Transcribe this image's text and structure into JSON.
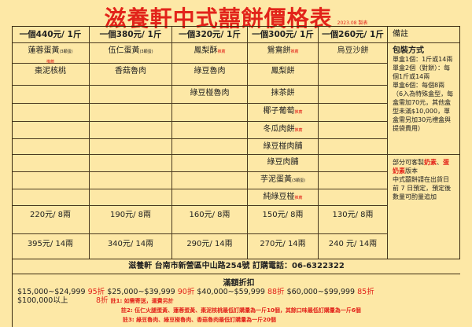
{
  "title": "滋養軒中式囍餅價格表",
  "date_note": "2023.08 製表",
  "headers": [
    "一個440元/ 1斤",
    "一個380元/ 1斤",
    "一個320元/ 1斤",
    "一個300元/ 1斤",
    "一個260元/ 1斤",
    "備註"
  ],
  "recommend_label": "推薦",
  "columns": [
    {
      "items": [
        {
          "name": "蓮蓉蛋黃",
          "sub": "(3顆蛋)",
          "rec": true
        },
        {
          "name": "棗泥核桃"
        }
      ],
      "price_8": "220元/ 8兩",
      "price_14": "395元/ 14兩"
    },
    {
      "items": [
        {
          "name": "伍仁蛋黃",
          "sub": "(3顆蛋)"
        },
        {
          "name": "香菇魯肉"
        }
      ],
      "price_8": "190元/ 8兩",
      "price_14": "340元/ 14兩"
    },
    {
      "items": [
        {
          "name": "鳳梨酥",
          "rec": true
        },
        {
          "name": "綠豆魯肉"
        },
        {
          "name": "綠豆椪魯肉"
        }
      ],
      "price_8": "160元/ 8兩",
      "price_14": "290元/ 14兩"
    },
    {
      "items": [
        {
          "name": "鴛鴦餅",
          "rec": true
        },
        {
          "name": "鳳梨餅"
        },
        {
          "name": "抹茶餅"
        },
        {
          "name": "椰子葡萄",
          "rec": true
        },
        {
          "name": "冬瓜肉餅",
          "rec": true
        },
        {
          "name": "綠豆椪肉脯"
        },
        {
          "name": "綠豆肉脯"
        },
        {
          "name": "芋泥蛋黃",
          "sub": "(3顆蛋)"
        },
        {
          "name": "純綠豆椪",
          "rec": true
        }
      ],
      "price_8": "150元/ 8兩",
      "price_14": "270元/ 14兩"
    },
    {
      "items": [
        {
          "name": "烏豆沙餅"
        }
      ],
      "price_8": "130元/ 8兩",
      "price_14": "240 元/ 14兩"
    }
  ],
  "notes": {
    "packaging_title": "包裝方式",
    "packaging_lines": [
      "單盒1個：1斤或14兩",
      "單盒2個（對餅）：每個1斤或14兩",
      "單盒6個：每個8兩（6入為特殊盒型，每盒需加70元，其他盒型未滿$10,000，單盒需另加30元禮盒與提袋費用）"
    ],
    "custom_prefix": "部分可客製",
    "custom_red1": "奶素",
    "custom_sep": "、",
    "custom_red2": "蛋奶素",
    "custom_suffix": "版本",
    "order_note": "中式囍餅請在出貨日前 7 日預定，預定後數量可酌量追加"
  },
  "address": "滋養軒 台南市新營區中山路254號 訂購電話：06-6322322",
  "discount": {
    "title": "滿額折扣",
    "tiers": [
      {
        "range": "$15,000~$24,999",
        "pct": "95折"
      },
      {
        "range": "$25,000~$39,999",
        "pct": "90折"
      },
      {
        "range": "$40,000~$59,999",
        "pct": "88折"
      },
      {
        "range": "$60,000~$99,999",
        "pct": "85折"
      },
      {
        "range": "$100,000以上",
        "pct": "8折"
      }
    ],
    "note1": "註1: 如需寄送，運費另計",
    "note2": "註2: 伍仁火腿蛋黃、蓮蓉蛋黃、棗泥核桃最低訂購量為一斤10個，其餘口味最低訂購量為一斤6個",
    "note3": "註3: 綠豆魯肉、綠豆椪魯肉、香菇魯肉最低訂購量為一斤20個"
  },
  "colors": {
    "accent_red": "#e2231a",
    "background": "#fde8a6"
  }
}
